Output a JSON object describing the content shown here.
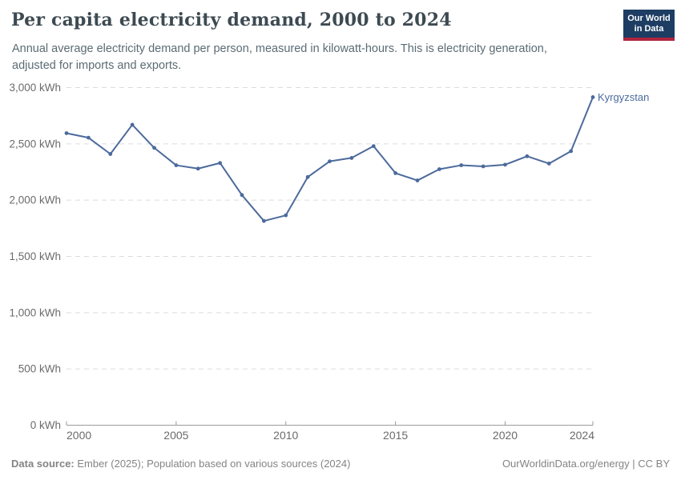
{
  "header": {
    "title": "Per capita electricity demand, 2000 to 2024",
    "subtitle": "Annual average electricity demand per person, measured in kilowatt-hours. This is electricity generation, adjusted for imports and exports.",
    "logo": {
      "line1": "Our World",
      "line2": "in Data",
      "bg_color": "#1d3d63",
      "stripe_color": "#b0243e"
    }
  },
  "chart_data": {
    "type": "line",
    "title": "Per capita electricity demand, 2000 to 2024",
    "unit": "kWh",
    "x": [
      2000,
      2001,
      2002,
      2003,
      2004,
      2005,
      2006,
      2007,
      2008,
      2009,
      2010,
      2011,
      2012,
      2013,
      2014,
      2015,
      2016,
      2017,
      2018,
      2019,
      2020,
      2021,
      2022,
      2023,
      2024
    ],
    "series": [
      {
        "name": "Kyrgyzstan",
        "color": "#4c6a9c",
        "values": [
          2595,
          2555,
          2410,
          2670,
          2465,
          2310,
          2280,
          2330,
          2045,
          1815,
          1865,
          2205,
          2345,
          2375,
          2480,
          2240,
          2175,
          2275,
          2310,
          2300,
          2315,
          2390,
          2325,
          2435,
          2915
        ]
      }
    ],
    "xlim": [
      2000,
      2024
    ],
    "ylim": [
      0,
      3000
    ],
    "xticks": [
      2000,
      2005,
      2010,
      2015,
      2020,
      2024
    ],
    "xtick_labels": [
      "2000",
      "2005",
      "2010",
      "2015",
      "2020",
      "2024"
    ],
    "yticks": [
      0,
      500,
      1000,
      1500,
      2000,
      2500,
      3000
    ],
    "ytick_labels": [
      "0 kWh",
      "500 kWh",
      "1,000 kWh",
      "1,500 kWh",
      "2,000 kWh",
      "2,500 kWh",
      "3,000 kWh"
    ],
    "grid": "horizontal-dashed",
    "legend_position": "end-of-line",
    "end_label": "Kyrgyzstan"
  },
  "footer": {
    "source_label": "Data source:",
    "source_text": " Ember (2025); Population based on various sources (2024)",
    "credit_text": "OurWorldinData.org/energy | CC BY"
  },
  "colors": {
    "line": "#4c6a9c",
    "gridline": "#dcdcdc",
    "axis": "#9b9b9b",
    "tick_label": "#6b6b6b"
  }
}
